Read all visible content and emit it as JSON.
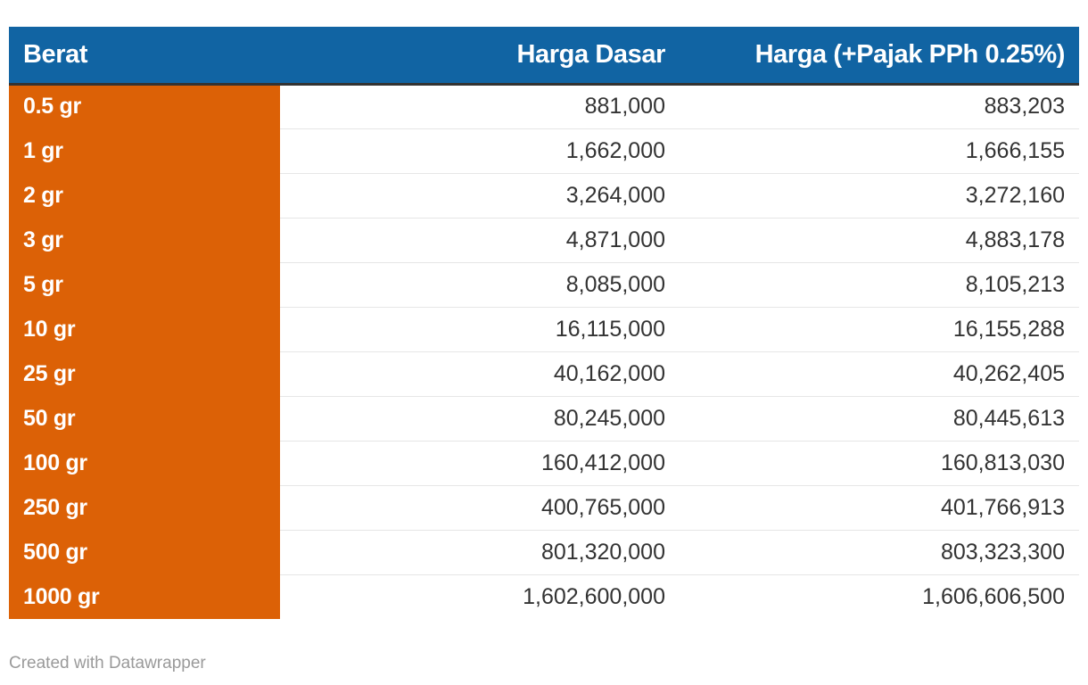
{
  "chart_data": {
    "type": "table",
    "columns": [
      "Berat",
      "Harga Dasar",
      "Harga (+Pajak PPh 0.25%)"
    ],
    "rows": [
      {
        "berat": "0.5 gr",
        "harga_dasar": "881,000",
        "harga_pajak": "883,203"
      },
      {
        "berat": "1 gr",
        "harga_dasar": "1,662,000",
        "harga_pajak": "1,666,155"
      },
      {
        "berat": "2 gr",
        "harga_dasar": "3,264,000",
        "harga_pajak": "3,272,160"
      },
      {
        "berat": "3 gr",
        "harga_dasar": "4,871,000",
        "harga_pajak": "4,883,178"
      },
      {
        "berat": "5 gr",
        "harga_dasar": "8,085,000",
        "harga_pajak": "8,105,213"
      },
      {
        "berat": "10 gr",
        "harga_dasar": "16,115,000",
        "harga_pajak": "16,155,288"
      },
      {
        "berat": "25 gr",
        "harga_dasar": "40,162,000",
        "harga_pajak": "40,262,405"
      },
      {
        "berat": "50 gr",
        "harga_dasar": "80,245,000",
        "harga_pajak": "80,445,613"
      },
      {
        "berat": "100 gr",
        "harga_dasar": "160,412,000",
        "harga_pajak": "160,813,030"
      },
      {
        "berat": "250 gr",
        "harga_dasar": "400,765,000",
        "harga_pajak": "401,766,913"
      },
      {
        "berat": "500 gr",
        "harga_dasar": "801,320,000",
        "harga_pajak": "803,323,300"
      },
      {
        "berat": "1000 gr",
        "harga_dasar": "1,602,600,000",
        "harga_pajak": "1,606,606,500"
      }
    ],
    "colors": {
      "header_bg": "#1164a3",
      "weight_column_bg": "#dc6106",
      "header_text": "#ffffff",
      "value_text": "#333333"
    }
  },
  "footer": {
    "credit": "Created with Datawrapper"
  }
}
